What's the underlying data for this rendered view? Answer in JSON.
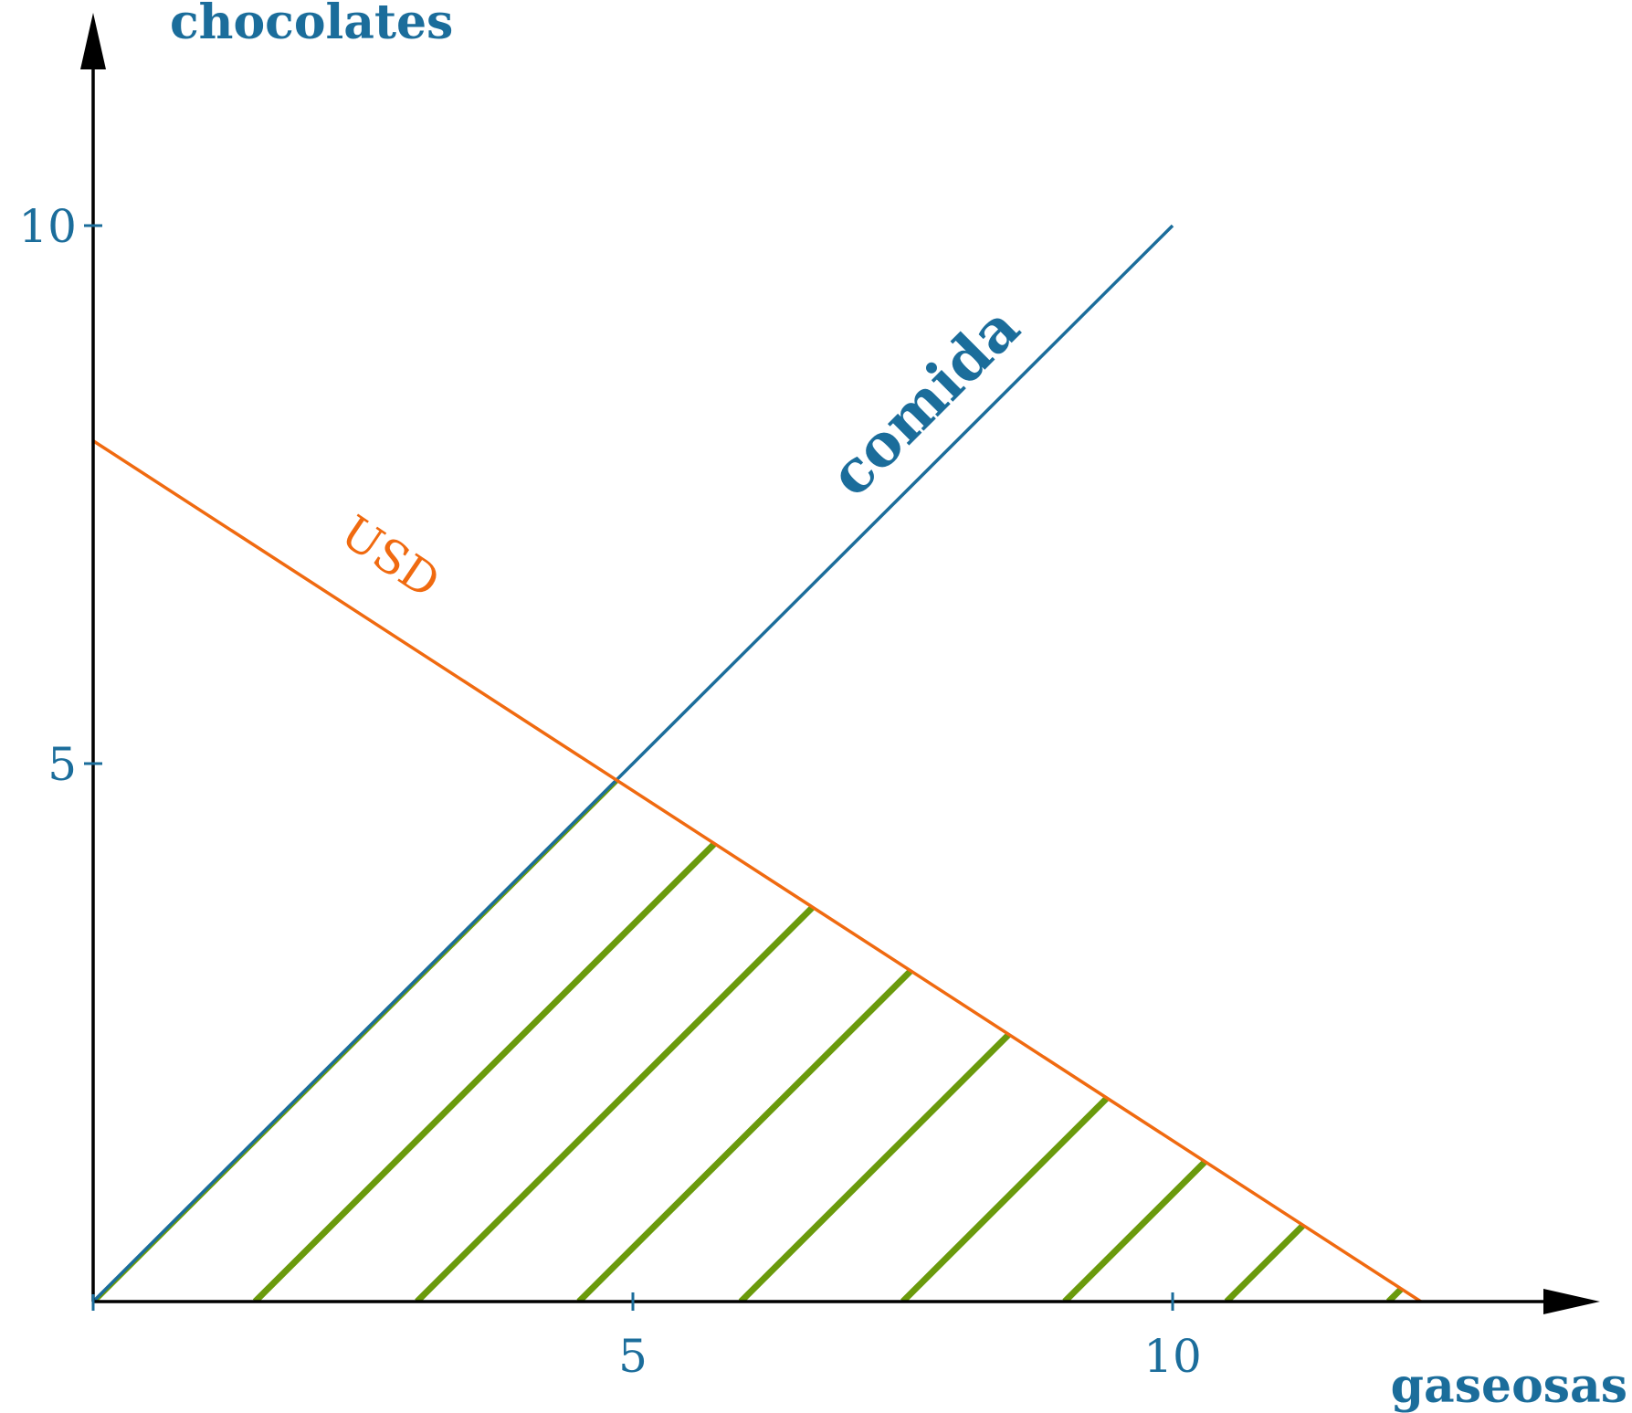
{
  "chart_data": {
    "type": "line",
    "x_axis": {
      "label": "gaseosas",
      "ticks": [
        5,
        10
      ],
      "range": [
        0,
        14
      ]
    },
    "y_axis": {
      "label": "chocolates",
      "ticks": [
        5,
        10
      ],
      "range": [
        0,
        12
      ]
    },
    "series": [
      {
        "name": "comida",
        "points": [
          [
            0,
            0
          ],
          [
            10,
            10
          ]
        ],
        "color": "#1b6d9b"
      },
      {
        "name": "USD",
        "points": [
          [
            0,
            8
          ],
          [
            12.3,
            0
          ]
        ],
        "color": "#f06a10"
      }
    ],
    "feasible_region": {
      "vertices": [
        [
          0,
          0
        ],
        [
          4.85,
          4.85
        ],
        [
          12.3,
          0
        ]
      ],
      "hatch_color": "#6a9a0c"
    },
    "grid": false,
    "colors": {
      "axis": "#000000",
      "labels": "#1b6d9b"
    }
  }
}
